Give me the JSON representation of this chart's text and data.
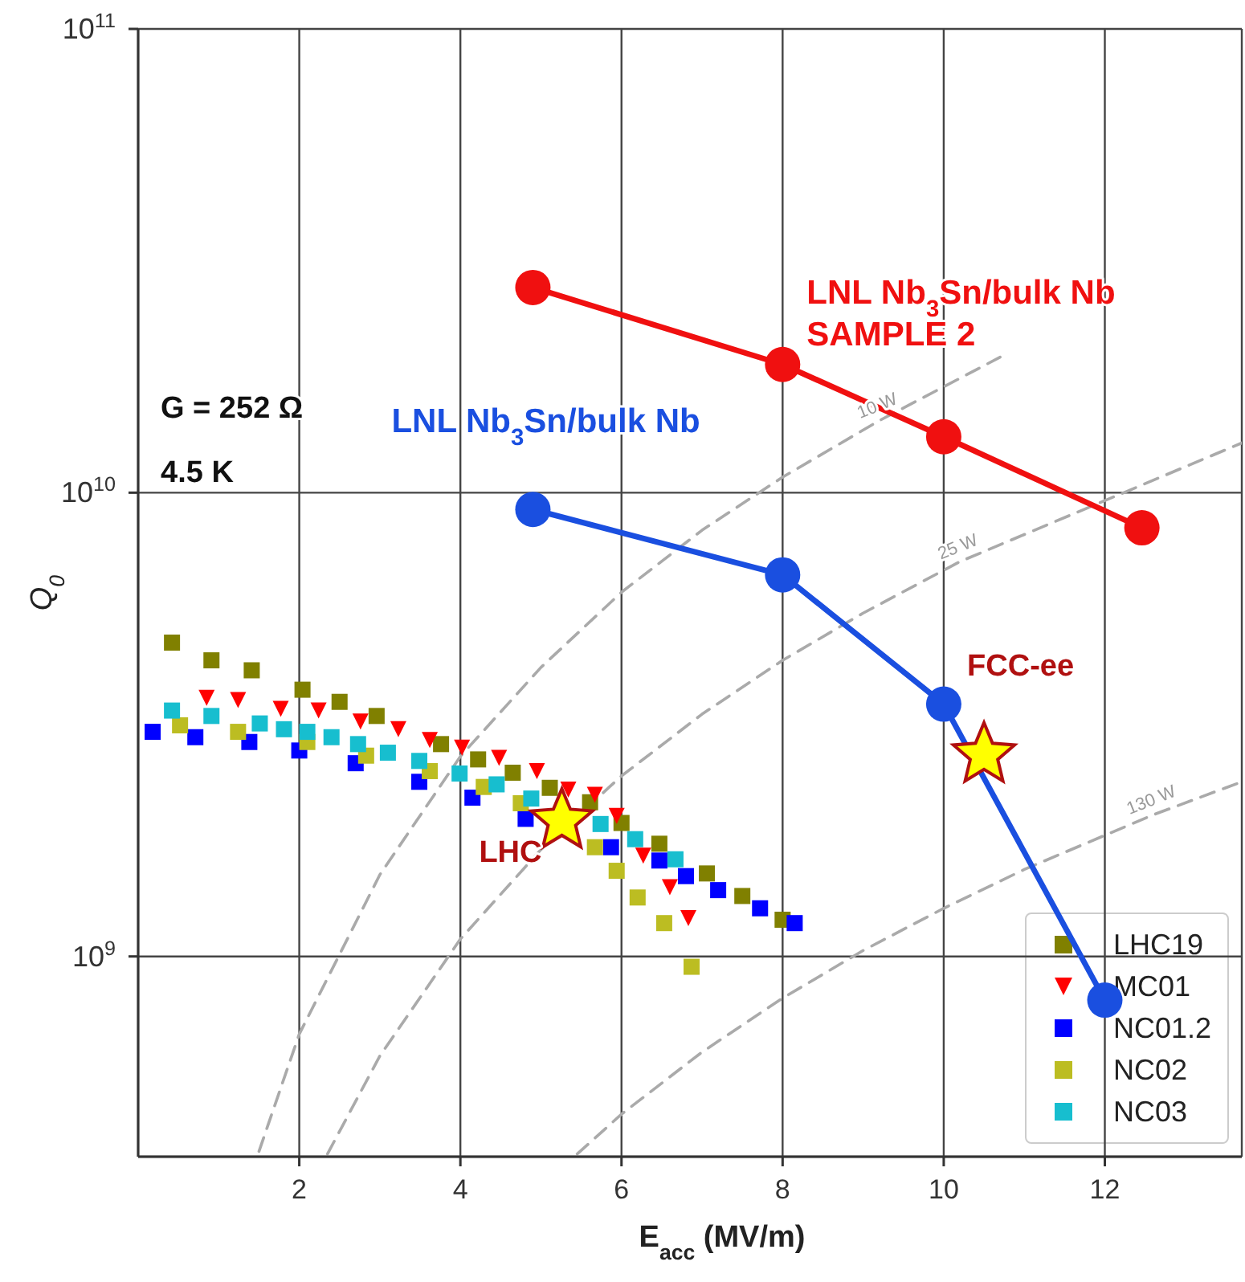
{
  "chart_data": {
    "type": "scatter",
    "xlabel": "E$_{acc}$ (MV/m)",
    "ylabel": "Q$_{0}$",
    "annotations": [
      "G = 252 Ω",
      "4.5 K"
    ],
    "xlim": [
      0,
      13.7
    ],
    "xticks": [
      2,
      4,
      6,
      8,
      10,
      12
    ],
    "ylim": [
      370000000,
      100000000000
    ],
    "yticks": [
      {
        "value": 1000000000,
        "label": "10$^{9}$"
      },
      {
        "value": 10000000000,
        "label": "10$^{10}$"
      },
      {
        "value": 100000000000,
        "label": "10$^{11}$"
      }
    ],
    "log": "y",
    "grid": true,
    "legend": "bottom right",
    "series": [
      {
        "type": "line",
        "name": "10 W",
        "color": "#aaaaaa",
        "marker": "none",
        "line_style": "dashed",
        "x": [
          1.5,
          2,
          3,
          4,
          5,
          6,
          7,
          8,
          9.2,
          10.7
        ],
        "values": [
          380000000,
          680000000,
          1500000000,
          2700000000,
          4200000000,
          6100000000,
          8300000000,
          10800000000,
          14300000000,
          19600000000
        ]
      },
      {
        "type": "line",
        "name": "25 W",
        "color": "#aaaaaa",
        "marker": "none",
        "line_style": "dashed",
        "x": [
          2.35,
          3,
          4,
          5,
          6,
          7,
          8,
          9,
          10.2,
          13.7
        ],
        "values": [
          375000000,
          610000000,
          1090000000,
          1700000000,
          2450000000,
          3330000000,
          4350000000,
          5500000000,
          7100000000,
          12800000000
        ]
      },
      {
        "type": "line",
        "name": "130 W",
        "color": "#aaaaaa",
        "marker": "none",
        "line_style": "dashed",
        "x": [
          5.45,
          6,
          7,
          8,
          9,
          10,
          11,
          12.6,
          13.7
        ],
        "values": [
          375000000,
          457000000,
          622000000,
          813000000,
          1030000000,
          1270000000,
          1540000000,
          2020000000,
          2380000000
        ]
      },
      {
        "name": "LHC19",
        "color": "#808000",
        "marker": "square",
        "x": [
          0.42,
          0.91,
          1.41,
          2.04,
          2.5,
          2.96,
          3.76,
          4.22,
          4.65,
          5.11,
          5.61,
          6.0,
          6.47,
          7.06,
          7.5,
          8.0
        ],
        "values": [
          4750000000,
          4350000000,
          4140000000,
          3760000000,
          3540000000,
          3300000000,
          2870000000,
          2660000000,
          2490000000,
          2310000000,
          2150000000,
          1940000000,
          1750000000,
          1510000000,
          1350000000,
          1200000000
        ]
      },
      {
        "name": "MC01",
        "color": "#ff0000",
        "marker": "triangle",
        "x": [
          0.85,
          1.24,
          1.77,
          2.24,
          2.76,
          3.23,
          3.62,
          4.02,
          4.48,
          4.95,
          5.34,
          5.67,
          5.94,
          6.27,
          6.6,
          6.83
        ],
        "values": [
          3610000000,
          3570000000,
          3420000000,
          3390000000,
          3210000000,
          3090000000,
          2930000000,
          2820000000,
          2680000000,
          2510000000,
          2290000000,
          2230000000,
          2010000000,
          1650000000,
          1410000000,
          1210000000
        ]
      },
      {
        "name": "NC01.2",
        "color": "#0000ff",
        "marker": "square",
        "x": [
          0.18,
          0.71,
          1.38,
          2.0,
          2.7,
          3.49,
          4.15,
          4.81,
          5.41,
          5.87,
          6.47,
          6.8,
          7.2,
          7.72,
          8.15
        ],
        "values": [
          3050000000,
          2970000000,
          2900000000,
          2780000000,
          2610000000,
          2380000000,
          2200000000,
          1980000000,
          null,
          1720000000,
          1610000000,
          1490000000,
          1390000000,
          1270000000,
          1180000000
        ]
      },
      {
        "name": "NC02",
        "color": "#bcbd22",
        "marker": "square",
        "x": [
          0.52,
          1.24,
          2.1,
          2.83,
          3.62,
          4.29,
          4.75,
          5.34,
          5.67,
          5.94,
          6.2,
          6.53,
          6.87
        ],
        "values": [
          3150000000,
          3050000000,
          2900000000,
          2710000000,
          2510000000,
          2320000000,
          2140000000,
          null,
          1720000000,
          1530000000,
          1340000000,
          1180000000,
          950000000
        ]
      },
      {
        "name": "NC03",
        "color": "#17becf",
        "marker": "square",
        "x": [
          0.42,
          0.91,
          1.51,
          1.81,
          2.1,
          2.4,
          2.73,
          3.1,
          3.49,
          3.99,
          4.45,
          4.88,
          5.74,
          6.17,
          6.67
        ],
        "values": [
          3390000000,
          3300000000,
          3180000000,
          3090000000,
          3050000000,
          2970000000,
          2870000000,
          2750000000,
          2640000000,
          2480000000,
          2350000000,
          2190000000,
          1930000000,
          1790000000,
          1620000000
        ]
      },
      {
        "type": "line",
        "name": "LNL Nb$_{3}$Sn/bulk Nb\nSAMPLE 2",
        "color": "#f01010",
        "marker": "circle",
        "x": [
          4.9,
          8,
          10,
          12.46
        ],
        "values": [
          27700000000,
          18900000000,
          13200000000,
          8400000000
        ]
      },
      {
        "type": "line",
        "name": "LNL Nb$_{3}$Sn/bulk Nb",
        "color": "#1a4fe0",
        "marker": "circle",
        "x": [
          4.9,
          8,
          10,
          12
        ],
        "values": [
          9200000000,
          6650000000,
          3500000000,
          805000000
        ]
      },
      {
        "name": "LHC",
        "color": "#ffff00",
        "marker": "star",
        "x": [
          5.26
        ],
        "values": [
          1960000000
        ]
      },
      {
        "name": "FCC-ee",
        "color": "#ffff00",
        "marker": "star",
        "x": [
          10.5
        ],
        "values": [
          2720000000
        ]
      }
    ]
  }
}
